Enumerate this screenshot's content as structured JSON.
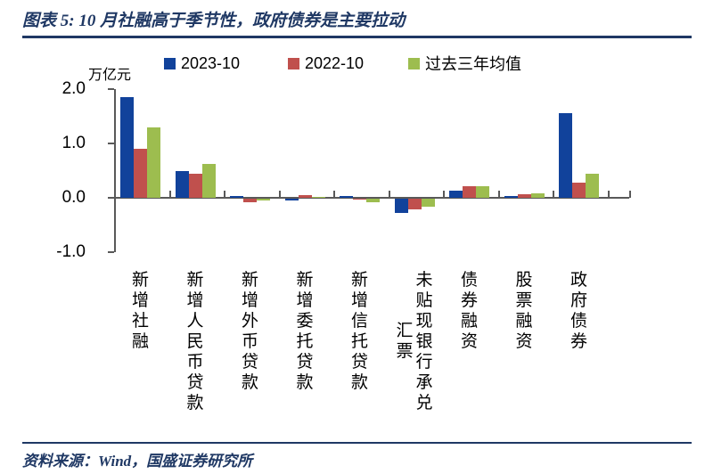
{
  "title": "图表 5: 10 月社融高于季节性，政府债券是主要拉动",
  "source": "资料来源：Wind，国盛证券研究所",
  "colors": {
    "accent_navy": "#1F3864",
    "bar_blue": "#11429B",
    "bar_red": "#C0504D",
    "bar_green": "#9DBD4F",
    "axis_gray": "#595959",
    "text_black": "#000000"
  },
  "chart_data": {
    "type": "bar",
    "unit": "万亿元",
    "ylim": [
      -1.0,
      2.0
    ],
    "yticks": [
      2.0,
      1.0,
      0.0,
      -1.0
    ],
    "grid": false,
    "legend_position": "top",
    "categories": [
      {
        "name": "新增社融",
        "lines": [
          "新增社融"
        ],
        "line_offsets": [
          0
        ]
      },
      {
        "name": "新增人民币贷款",
        "lines": [
          "新增人民币贷款"
        ],
        "line_offsets": [
          0
        ]
      },
      {
        "name": "新增外币贷款",
        "lines": [
          "新增外币贷款"
        ],
        "line_offsets": [
          0
        ]
      },
      {
        "name": "新增委托贷款",
        "lines": [
          "新增委托贷款"
        ],
        "line_offsets": [
          0
        ]
      },
      {
        "name": "新增信托贷款",
        "lines": [
          "新增信托贷款"
        ],
        "line_offsets": [
          0
        ]
      },
      {
        "name": "未贴现银行承兑汇票",
        "lines": [
          "未贴现银行承兑",
          "汇票"
        ],
        "line_offsets": [
          0,
          57
        ]
      },
      {
        "name": "债券融资",
        "lines": [
          "债券融资"
        ],
        "line_offsets": [
          0
        ]
      },
      {
        "name": "股票融资",
        "lines": [
          "股票融资"
        ],
        "line_offsets": [
          0
        ]
      },
      {
        "name": "政府债券",
        "lines": [
          "政府债券"
        ],
        "line_offsets": [
          0
        ]
      }
    ],
    "series": [
      {
        "name": "2023-10",
        "color": "#11429B",
        "values": [
          1.85,
          0.49,
          0.03,
          -0.04,
          0.04,
          -0.26,
          0.13,
          0.03,
          1.56
        ]
      },
      {
        "name": "2022-10",
        "color": "#C0504D",
        "values": [
          0.9,
          0.44,
          -0.07,
          0.05,
          -0.01,
          -0.19,
          0.22,
          0.06,
          0.28
        ]
      },
      {
        "name": "过去三年均值",
        "color": "#9DBD4F",
        "values": [
          1.3,
          0.62,
          -0.04,
          0.01,
          -0.07,
          -0.14,
          0.21,
          0.08,
          0.44
        ]
      }
    ]
  }
}
